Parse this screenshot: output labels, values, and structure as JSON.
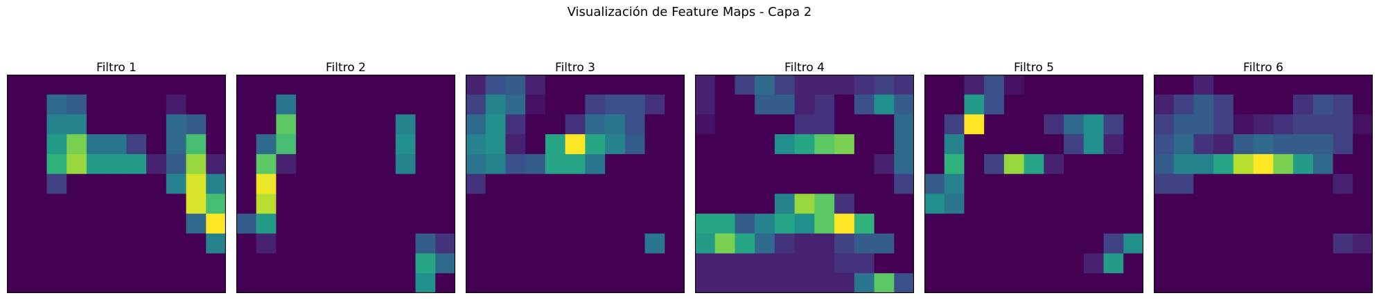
{
  "title": "Visualización de Feature Maps - Capa 2",
  "chart_data": [
    {
      "type": "heatmap",
      "title": "Filtro 1",
      "colormap": "viridis",
      "grid": [
        [
          0,
          0,
          0,
          0,
          0,
          0,
          0,
          0,
          0,
          0,
          0
        ],
        [
          0,
          0,
          0.35,
          0.3,
          0,
          0,
          0,
          0,
          0.08,
          0,
          0
        ],
        [
          0,
          0,
          0.45,
          0.45,
          0,
          0,
          0,
          0,
          0.35,
          0.3,
          0
        ],
        [
          0,
          0,
          0.55,
          0.8,
          0.4,
          0.4,
          0.2,
          0,
          0.35,
          0.7,
          0
        ],
        [
          0,
          0,
          0.65,
          0.85,
          0.55,
          0.55,
          0.55,
          0.1,
          0.3,
          0.85,
          0.1
        ],
        [
          0,
          0,
          0.2,
          0,
          0,
          0,
          0,
          0,
          0.45,
          0.95,
          0.45
        ],
        [
          0,
          0,
          0,
          0,
          0,
          0,
          0,
          0,
          0,
          0.95,
          0.7
        ],
        [
          0,
          0,
          0,
          0,
          0,
          0,
          0,
          0,
          0,
          0.35,
          1.0
        ],
        [
          0,
          0,
          0,
          0,
          0,
          0,
          0,
          0,
          0,
          0,
          0.45
        ],
        [
          0,
          0,
          0,
          0,
          0,
          0,
          0,
          0,
          0,
          0,
          0
        ],
        [
          0,
          0,
          0,
          0,
          0,
          0,
          0,
          0,
          0,
          0,
          0
        ]
      ]
    },
    {
      "type": "heatmap",
      "title": "Filtro 2",
      "colormap": "viridis",
      "grid": [
        [
          0,
          0,
          0,
          0,
          0,
          0,
          0,
          0,
          0,
          0,
          0
        ],
        [
          0,
          0,
          0.4,
          0,
          0,
          0,
          0,
          0,
          0,
          0,
          0
        ],
        [
          0,
          0,
          0.75,
          0,
          0,
          0,
          0,
          0,
          0.45,
          0,
          0
        ],
        [
          0,
          0.35,
          0.7,
          0,
          0,
          0,
          0,
          0,
          0.5,
          0,
          0
        ],
        [
          0,
          0.75,
          0.1,
          0,
          0,
          0,
          0,
          0,
          0.45,
          0,
          0
        ],
        [
          0,
          0.98,
          0,
          0,
          0,
          0,
          0,
          0,
          0,
          0,
          0
        ],
        [
          0,
          0.9,
          0,
          0,
          0,
          0,
          0,
          0,
          0,
          0,
          0
        ],
        [
          0.3,
          0.55,
          0,
          0,
          0,
          0,
          0,
          0,
          0,
          0,
          0
        ],
        [
          0,
          0.1,
          0,
          0,
          0,
          0,
          0,
          0,
          0,
          0.3,
          0.15
        ],
        [
          0,
          0,
          0,
          0,
          0,
          0,
          0,
          0,
          0,
          0.6,
          0.35
        ],
        [
          0,
          0,
          0,
          0,
          0,
          0,
          0,
          0,
          0,
          0.5,
          0
        ]
      ]
    },
    {
      "type": "heatmap",
      "title": "Filtro 3",
      "colormap": "viridis",
      "grid": [
        [
          0.1,
          0.25,
          0.3,
          0.1,
          0,
          0,
          0,
          0,
          0,
          0,
          0
        ],
        [
          0.2,
          0.45,
          0.35,
          0.05,
          0,
          0,
          0.2,
          0.25,
          0.25,
          0.15,
          0
        ],
        [
          0.35,
          0.5,
          0.15,
          0,
          0,
          0.15,
          0.35,
          0.4,
          0.25,
          0,
          0
        ],
        [
          0.45,
          0.5,
          0.1,
          0,
          0.6,
          1.0,
          0.6,
          0.45,
          0.3,
          0,
          0
        ],
        [
          0.4,
          0.45,
          0.25,
          0.3,
          0.6,
          0.6,
          0.4,
          0,
          0,
          0,
          0
        ],
        [
          0.15,
          0,
          0,
          0,
          0,
          0,
          0,
          0,
          0,
          0,
          0
        ],
        [
          0,
          0,
          0,
          0,
          0,
          0,
          0,
          0,
          0,
          0,
          0
        ],
        [
          0,
          0,
          0,
          0,
          0,
          0,
          0,
          0,
          0,
          0,
          0
        ],
        [
          0,
          0,
          0,
          0,
          0,
          0,
          0,
          0,
          0,
          0.4,
          0
        ],
        [
          0,
          0,
          0,
          0,
          0,
          0,
          0,
          0,
          0,
          0,
          0
        ],
        [
          0,
          0,
          0,
          0,
          0,
          0,
          0,
          0,
          0,
          0,
          0
        ]
      ]
    },
    {
      "type": "heatmap",
      "title": "Filtro 4",
      "colormap": "viridis",
      "grid": [
        [
          0.1,
          0,
          0.2,
          0.35,
          0.2,
          0.1,
          0.1,
          0.1,
          0.15,
          0.2,
          0.15
        ],
        [
          0.1,
          0,
          0,
          0.3,
          0.3,
          0.1,
          0.15,
          0,
          0.25,
          0.5,
          0.3
        ],
        [
          0.05,
          0,
          0,
          0,
          0,
          0.15,
          0.15,
          0,
          0,
          0,
          0.35
        ],
        [
          0,
          0,
          0,
          0,
          0.5,
          0.6,
          0.75,
          0.8,
          0,
          0,
          0.35
        ],
        [
          0,
          0,
          0,
          0,
          0,
          0,
          0,
          0,
          0,
          0.1,
          0.35
        ],
        [
          0,
          0,
          0,
          0,
          0,
          0,
          0,
          0,
          0,
          0,
          0.2
        ],
        [
          0,
          0,
          0,
          0,
          0.45,
          0.85,
          0.75,
          0.15,
          0,
          0,
          0
        ],
        [
          0.6,
          0.6,
          0.3,
          0.45,
          0.6,
          0.5,
          0.75,
          1.0,
          0.65,
          0,
          0
        ],
        [
          0.55,
          0.8,
          0.6,
          0.35,
          0.15,
          0.1,
          0.1,
          0.2,
          0.3,
          0.3,
          0
        ],
        [
          0.1,
          0.1,
          0.1,
          0.1,
          0.1,
          0.1,
          0.1,
          0.15,
          0.15,
          0,
          0
        ],
        [
          0.1,
          0.1,
          0.1,
          0.1,
          0.1,
          0.1,
          0.1,
          0.1,
          0.4,
          0.75,
          0.25
        ]
      ]
    },
    {
      "type": "heatmap",
      "title": "Filtro 5",
      "colormap": "viridis",
      "grid": [
        [
          0,
          0,
          0.1,
          0.25,
          0.05,
          0,
          0,
          0,
          0,
          0,
          0
        ],
        [
          0,
          0,
          0.55,
          0.25,
          0,
          0,
          0,
          0,
          0,
          0,
          0
        ],
        [
          0,
          0.2,
          1.0,
          0,
          0,
          0,
          0.15,
          0.35,
          0.5,
          0.2,
          0
        ],
        [
          0,
          0.45,
          0,
          0,
          0,
          0,
          0,
          0.2,
          0.5,
          0.1,
          0
        ],
        [
          0,
          0.65,
          0,
          0.2,
          0.85,
          0.6,
          0.1,
          0,
          0,
          0,
          0
        ],
        [
          0.3,
          0.45,
          0,
          0,
          0,
          0,
          0,
          0,
          0,
          0,
          0
        ],
        [
          0.5,
          0.4,
          0,
          0,
          0,
          0,
          0,
          0,
          0,
          0,
          0
        ],
        [
          0,
          0,
          0,
          0,
          0,
          0,
          0,
          0,
          0,
          0,
          0
        ],
        [
          0,
          0,
          0,
          0,
          0,
          0,
          0,
          0,
          0,
          0.2,
          0.5
        ],
        [
          0,
          0,
          0,
          0,
          0,
          0,
          0,
          0,
          0.1,
          0.55,
          0
        ],
        [
          0,
          0,
          0,
          0,
          0,
          0,
          0,
          0,
          0,
          0,
          0
        ]
      ]
    },
    {
      "type": "heatmap",
      "title": "Filtro 6",
      "colormap": "viridis",
      "grid": [
        [
          0,
          0,
          0.1,
          0,
          0,
          0,
          0,
          0,
          0,
          0,
          0
        ],
        [
          0.1,
          0.2,
          0.3,
          0.2,
          0,
          0,
          0,
          0.15,
          0.25,
          0.2,
          0
        ],
        [
          0.2,
          0.3,
          0.3,
          0.2,
          0.05,
          0.1,
          0.15,
          0.2,
          0.2,
          0.2,
          0.05
        ],
        [
          0.25,
          0.35,
          0.15,
          0.1,
          0.3,
          0.35,
          0.3,
          0.3,
          0.3,
          0.2,
          0
        ],
        [
          0.3,
          0.45,
          0.45,
          0.6,
          0.9,
          1.0,
          0.8,
          0.55,
          0.35,
          0,
          0
        ],
        [
          0.2,
          0.2,
          0,
          0,
          0,
          0,
          0,
          0,
          0,
          0.1,
          0
        ],
        [
          0,
          0,
          0,
          0,
          0,
          0,
          0,
          0,
          0,
          0,
          0
        ],
        [
          0,
          0,
          0,
          0,
          0,
          0,
          0,
          0,
          0,
          0,
          0
        ],
        [
          0,
          0,
          0,
          0,
          0,
          0,
          0,
          0,
          0,
          0.15,
          0.1
        ],
        [
          0,
          0,
          0,
          0,
          0,
          0,
          0,
          0,
          0,
          0,
          0
        ],
        [
          0,
          0,
          0,
          0,
          0,
          0,
          0,
          0,
          0,
          0,
          0
        ]
      ]
    }
  ]
}
